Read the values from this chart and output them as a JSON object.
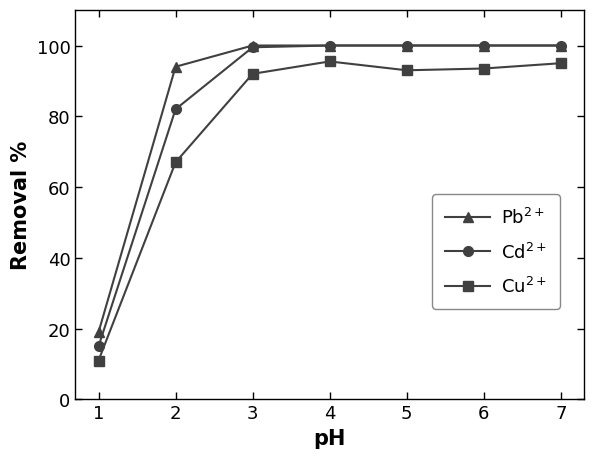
{
  "x": [
    1,
    2,
    3,
    4,
    5,
    6,
    7
  ],
  "Pb": [
    19,
    94,
    100,
    100,
    100,
    100,
    100
  ],
  "Cd": [
    15,
    82,
    99.5,
    100,
    100,
    100,
    100
  ],
  "Cu": [
    11,
    67,
    92,
    95.5,
    93,
    93.5,
    95
  ],
  "line_color": "#404040",
  "xlabel": "pH",
  "ylabel": "Removal %",
  "xlim": [
    0.7,
    7.3
  ],
  "ylim": [
    0,
    110
  ],
  "xticks": [
    1,
    2,
    3,
    4,
    5,
    6,
    7
  ],
  "yticks": [
    0,
    20,
    40,
    60,
    80,
    100
  ],
  "legend_labels": [
    "Pb$^{2+}$",
    "Cd$^{2+}$",
    "Cu$^{2+}$"
  ],
  "label_fontsize": 15,
  "tick_fontsize": 13,
  "legend_fontsize": 13,
  "linewidth": 1.5,
  "markersize": 7
}
